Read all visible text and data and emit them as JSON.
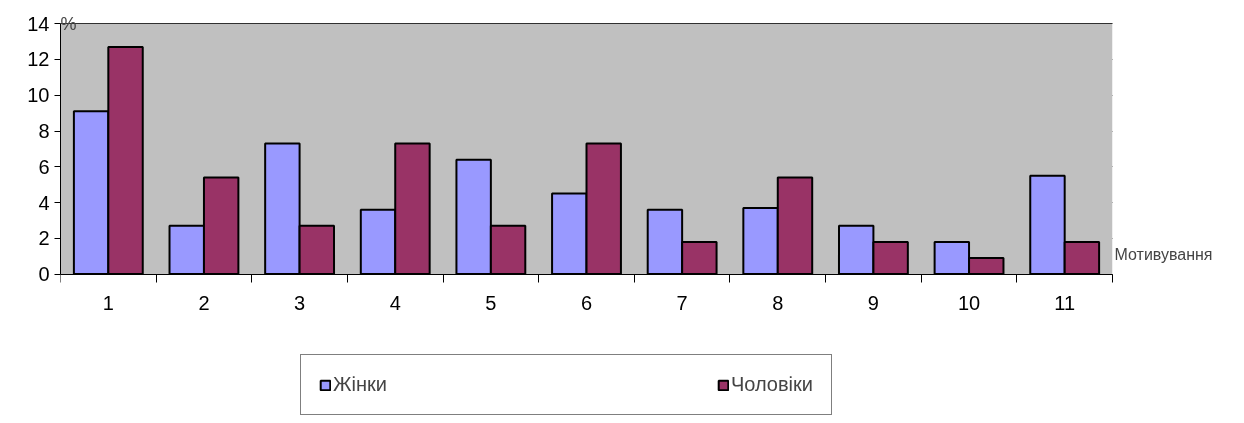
{
  "chart_data": {
    "type": "bar",
    "xlabel": "Мотивування",
    "ylabel": "%",
    "categories": [
      "1",
      "2",
      "3",
      "4",
      "5",
      "6",
      "7",
      "8",
      "9",
      "10",
      "11"
    ],
    "series": [
      {
        "name": "Жінки",
        "color": "#9999ff",
        "values": [
          9.1,
          2.7,
          7.3,
          3.6,
          6.4,
          4.5,
          3.6,
          3.7,
          2.7,
          1.8,
          5.5
        ]
      },
      {
        "name": "Чоловіки",
        "color": "#993366",
        "values": [
          12.7,
          5.4,
          2.7,
          7.3,
          2.7,
          7.3,
          1.8,
          5.4,
          1.8,
          0.9,
          1.8
        ]
      }
    ],
    "ylim": [
      0,
      14
    ],
    "yticks": [
      0,
      2,
      4,
      6,
      8,
      10,
      12,
      14
    ],
    "grid": "y",
    "legend": "bottom"
  }
}
